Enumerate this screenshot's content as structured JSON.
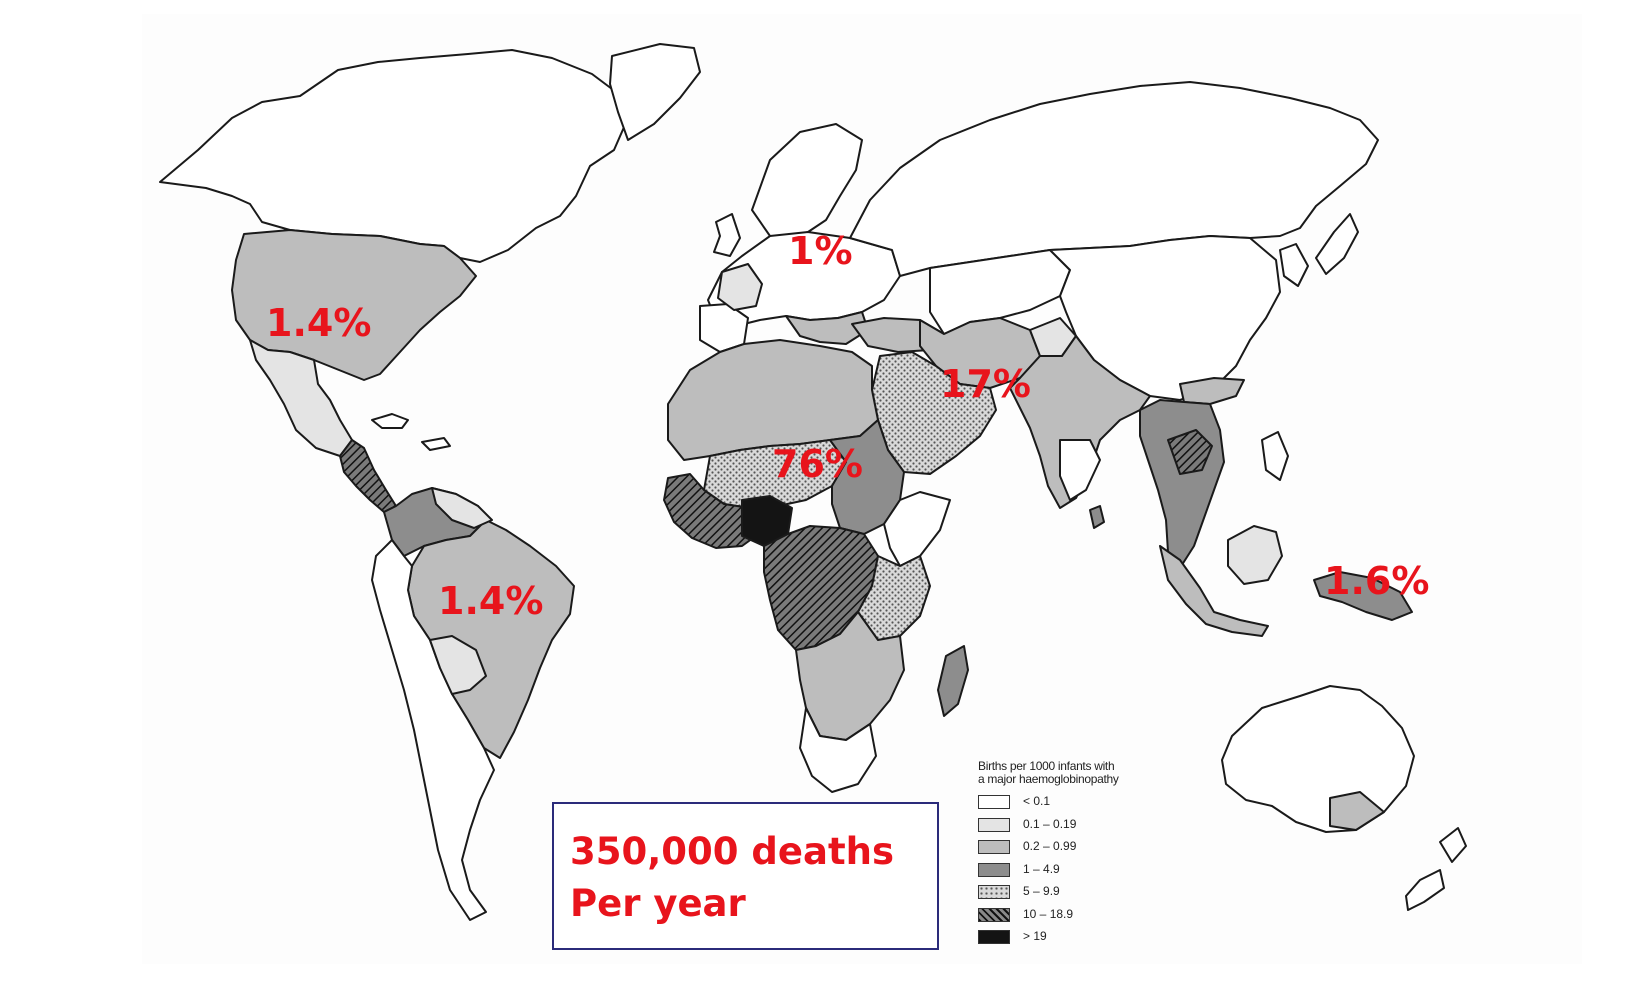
{
  "map": {
    "region_labels": [
      {
        "id": "north-america",
        "text": "1.4%"
      },
      {
        "id": "south-america",
        "text": "1.4%"
      },
      {
        "id": "europe",
        "text": "1%"
      },
      {
        "id": "africa",
        "text": "76%"
      },
      {
        "id": "middle-east-south-asia",
        "text": "17%"
      },
      {
        "id": "oceania",
        "text": "1.6%"
      }
    ],
    "callout": {
      "line1": "350,000 deaths",
      "line2": "Per year"
    },
    "legend": {
      "title_line1": "Births per 1000  infants with",
      "title_line2": "a major haemoglobinopathy",
      "items": [
        {
          "label": "< 0.1",
          "swatch": "white"
        },
        {
          "label": "0.1 – 0.19",
          "swatch": "light-gray"
        },
        {
          "label": "0.2 – 0.99",
          "swatch": "mid-gray"
        },
        {
          "label": "1 – 4.9",
          "swatch": "dark-gray"
        },
        {
          "label": "5 – 9.9",
          "swatch": "dotted"
        },
        {
          "label": "10 – 18.9",
          "swatch": "hatched"
        },
        {
          "label": "> 19",
          "swatch": "black"
        }
      ]
    },
    "colors": {
      "label_red": "#e8141c",
      "box_border": "#2b2b7a",
      "white": "#ffffff",
      "light_gray": "#e4e4e4",
      "mid_gray": "#bdbdbd",
      "dark_gray": "#8d8d8d",
      "black": "#141414"
    }
  }
}
